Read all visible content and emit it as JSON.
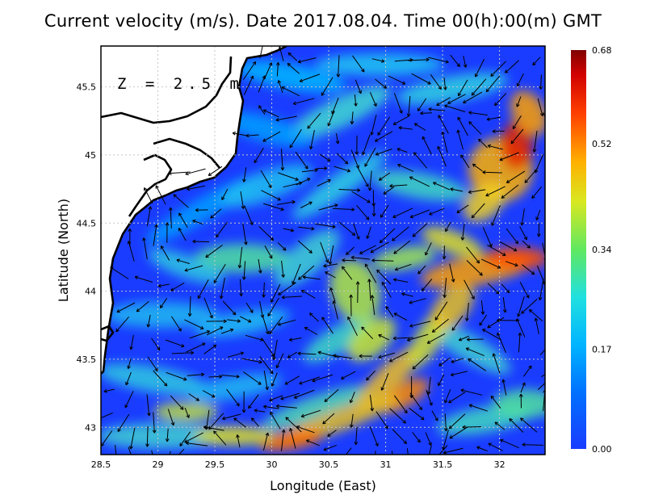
{
  "title": "Current velocity (m/s). Date 2017.08.04. Time 00(h):00(m) GMT",
  "depth_label": "Z = 2.5 m",
  "axes": {
    "x_label": "Longitude (East)",
    "y_label": "Latitude (North)",
    "x_ticks": [
      "28.5",
      "29",
      "29.5",
      "30",
      "30.5",
      "31",
      "31.5",
      "32"
    ],
    "y_ticks": [
      "43",
      "43.5",
      "44",
      "44.5",
      "45",
      "45.5"
    ],
    "x_range": [
      28.5,
      32.4
    ],
    "y_range": [
      42.8,
      45.8
    ]
  },
  "colorbar": {
    "ticks": [
      "0.68",
      "0.52",
      "0.34",
      "0.17",
      "0.00"
    ],
    "range": [
      0.0,
      0.68
    ],
    "colors": [
      "#1a3cff",
      "#00a0ff",
      "#20e0e0",
      "#60e860",
      "#e8e820",
      "#ff9000",
      "#e01000",
      "#800000"
    ]
  },
  "colors": {
    "land": "#ffffff",
    "coast": "#000000",
    "grid": "#bbbbbb"
  }
}
